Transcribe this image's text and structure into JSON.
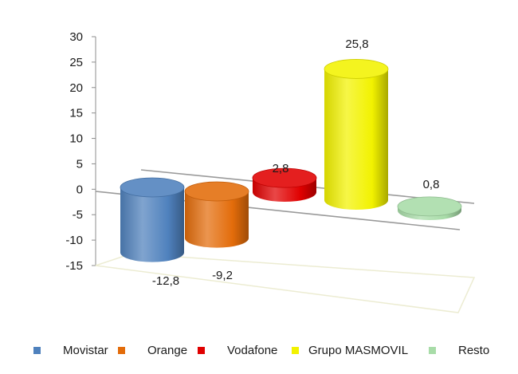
{
  "chart_data": {
    "type": "bar",
    "style": "3d-cylinder",
    "categories": [
      "Movistar",
      "Orange",
      "Vodafone",
      "Grupo MASMOVIL",
      "Resto"
    ],
    "values": [
      -12.8,
      -9.2,
      2.8,
      25.8,
      0.8
    ],
    "value_labels": [
      "-12,8",
      "-9,2",
      "2,8",
      "25,8",
      "0,8"
    ],
    "colors": [
      "#4f81bd",
      "#e36c0a",
      "#e00000",
      "#f2f200",
      "#a8dca8"
    ],
    "y_ticks": [
      "30",
      "25",
      "20",
      "15",
      "10",
      "5",
      "0",
      "-5",
      "-10",
      "-15"
    ],
    "ylim": [
      -15,
      30
    ],
    "title": "",
    "xlabel": "",
    "ylabel": "",
    "legend_position": "bottom",
    "grid": false
  }
}
